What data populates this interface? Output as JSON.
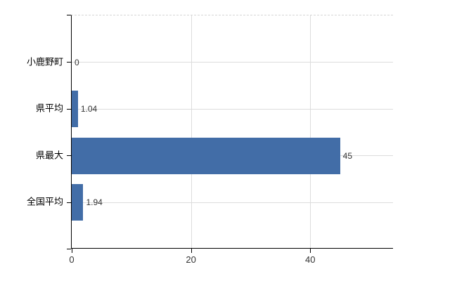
{
  "chart_data": {
    "type": "bar",
    "orientation": "horizontal",
    "categories": [
      "小鹿野町",
      "県平均",
      "県最大",
      "全国平均"
    ],
    "values": [
      0,
      1.04,
      45,
      1.94
    ],
    "value_labels": [
      "0",
      "1.04",
      "45",
      "1.94"
    ],
    "xlim": [
      0,
      54
    ],
    "x_ticks": [
      0,
      20,
      40
    ],
    "x_tick_labels": [
      "0",
      "20",
      "40"
    ],
    "grid": true,
    "legend": false,
    "title": ""
  },
  "colors": {
    "bar": "#426da7",
    "grid": "#dcdcdc",
    "axis": "#000000",
    "value_text": "#333333",
    "category_text": "#000000"
  }
}
